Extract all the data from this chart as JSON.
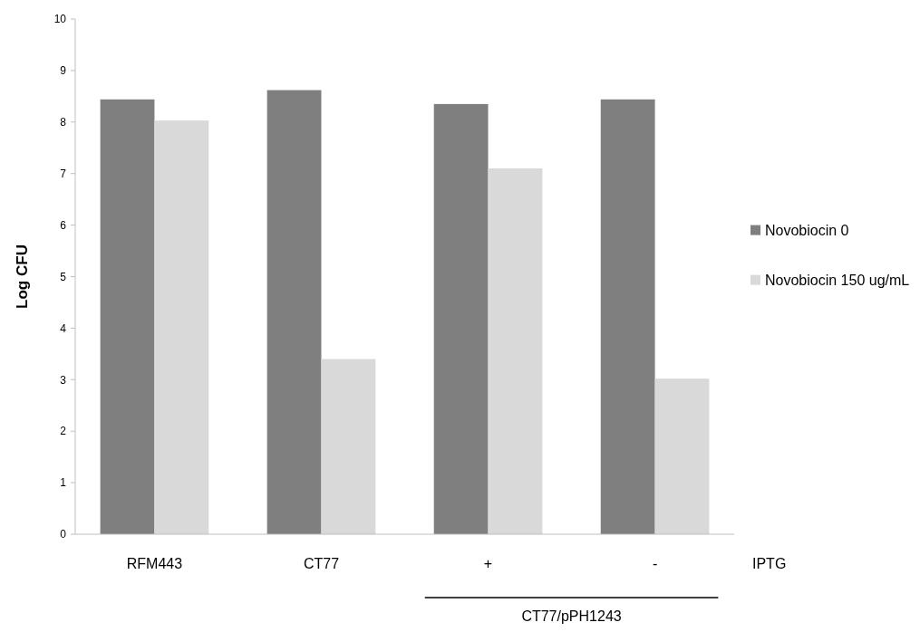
{
  "chart_data": {
    "type": "bar",
    "ylabel": "Log CFU",
    "categories": [
      "RFM443",
      "CT77",
      "+",
      "-"
    ],
    "series": [
      {
        "name": "Novobiocin 0",
        "color": "#7f7f7f",
        "values": [
          8.44,
          8.62,
          8.35,
          8.44
        ]
      },
      {
        "name": "Novobiocin 150 ug/mL",
        "color": "#d9d9d9",
        "values": [
          8.03,
          3.4,
          7.1,
          3.02
        ]
      }
    ],
    "ylim": [
      0,
      10
    ],
    "yticks": [
      0,
      1,
      2,
      3,
      4,
      5,
      6,
      7,
      8,
      9,
      10
    ],
    "grid": false,
    "legend": "right",
    "annotations": [
      "IPTG",
      "CT77/pPH1243"
    ]
  }
}
